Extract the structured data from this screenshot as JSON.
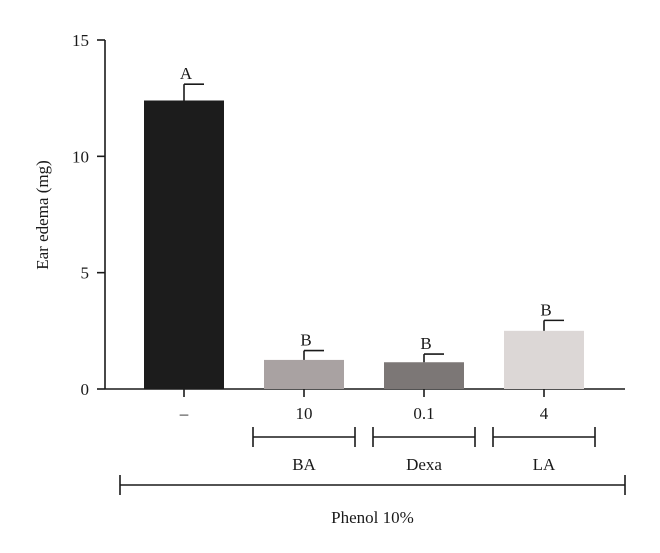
{
  "chart_data": {
    "type": "bar",
    "ylabel": "Ear edema (mg)",
    "ylim": [
      0,
      15
    ],
    "yticks": [
      "0",
      "5",
      "10",
      "15"
    ],
    "categories": [
      "–",
      "10",
      "0.1",
      "4"
    ],
    "values": [
      12.4,
      1.25,
      1.15,
      2.5
    ],
    "errors": [
      0.7,
      0.4,
      0.35,
      0.45
    ],
    "significance": [
      "A",
      "B",
      "B",
      "B"
    ],
    "bar_colors": [
      "#1c1c1c",
      "#a9a2a2",
      "#7c7776",
      "#dcd7d6"
    ],
    "groups": [
      {
        "label": "BA",
        "categories": [
          1
        ]
      },
      {
        "label": "Dexa",
        "categories": [
          2
        ]
      },
      {
        "label": "LA",
        "categories": [
          3
        ]
      }
    ],
    "overall_group": {
      "label": "Phenol 10%",
      "categories": [
        0,
        1,
        2,
        3
      ]
    }
  }
}
